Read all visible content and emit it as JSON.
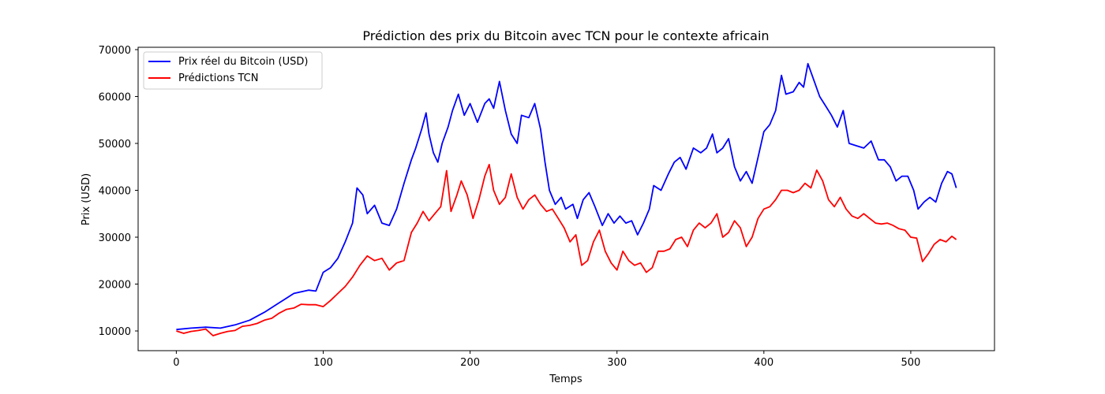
{
  "chart_data": {
    "type": "line",
    "title": "Prédiction des prix du Bitcoin avec TCN pour le contexte africain",
    "xlabel": "Temps",
    "ylabel": "Prix (USD)",
    "xlim": [
      -26,
      557
    ],
    "ylim": [
      5800,
      70500
    ],
    "xticks": [
      0,
      100,
      200,
      300,
      400,
      500
    ],
    "yticks": [
      10000,
      20000,
      30000,
      40000,
      50000,
      60000,
      70000
    ],
    "grid": false,
    "legend_position": "upper left",
    "series": [
      {
        "name": "Prix réel du Bitcoin (USD)",
        "color": "#0000ff",
        "points": [
          [
            0,
            10300
          ],
          [
            10,
            10600
          ],
          [
            20,
            10800
          ],
          [
            30,
            10600
          ],
          [
            40,
            11300
          ],
          [
            50,
            12300
          ],
          [
            60,
            14000
          ],
          [
            70,
            16000
          ],
          [
            80,
            18000
          ],
          [
            90,
            18700
          ],
          [
            95,
            18500
          ],
          [
            100,
            22500
          ],
          [
            105,
            23500
          ],
          [
            110,
            25500
          ],
          [
            115,
            29000
          ],
          [
            120,
            33000
          ],
          [
            123,
            40500
          ],
          [
            127,
            39000
          ],
          [
            130,
            35000
          ],
          [
            135,
            36800
          ],
          [
            140,
            33000
          ],
          [
            145,
            32500
          ],
          [
            150,
            36000
          ],
          [
            155,
            41500
          ],
          [
            160,
            46500
          ],
          [
            163,
            49000
          ],
          [
            167,
            53000
          ],
          [
            170,
            56500
          ],
          [
            172,
            52000
          ],
          [
            175,
            48000
          ],
          [
            178,
            46000
          ],
          [
            181,
            50000
          ],
          [
            185,
            53500
          ],
          [
            188,
            57000
          ],
          [
            192,
            60500
          ],
          [
            196,
            56000
          ],
          [
            200,
            58500
          ],
          [
            205,
            54500
          ],
          [
            210,
            58500
          ],
          [
            213,
            59500
          ],
          [
            216,
            57500
          ],
          [
            220,
            63200
          ],
          [
            224,
            57000
          ],
          [
            228,
            52000
          ],
          [
            232,
            50000
          ],
          [
            235,
            56000
          ],
          [
            240,
            55500
          ],
          [
            244,
            58500
          ],
          [
            248,
            53000
          ],
          [
            251,
            46000
          ],
          [
            254,
            40000
          ],
          [
            258,
            37000
          ],
          [
            262,
            38500
          ],
          [
            265,
            36000
          ],
          [
            270,
            37000
          ],
          [
            273,
            34000
          ],
          [
            277,
            38000
          ],
          [
            281,
            39500
          ],
          [
            285,
            36500
          ],
          [
            290,
            32500
          ],
          [
            294,
            35000
          ],
          [
            298,
            33000
          ],
          [
            302,
            34500
          ],
          [
            306,
            33000
          ],
          [
            310,
            33500
          ],
          [
            314,
            30500
          ],
          [
            318,
            33000
          ],
          [
            322,
            36000
          ],
          [
            325,
            41000
          ],
          [
            330,
            40000
          ],
          [
            335,
            43500
          ],
          [
            339,
            46000
          ],
          [
            343,
            47000
          ],
          [
            347,
            44500
          ],
          [
            352,
            49000
          ],
          [
            357,
            48000
          ],
          [
            361,
            49000
          ],
          [
            365,
            52000
          ],
          [
            368,
            48000
          ],
          [
            372,
            49000
          ],
          [
            376,
            51000
          ],
          [
            380,
            45000
          ],
          [
            384,
            42000
          ],
          [
            388,
            44000
          ],
          [
            392,
            41500
          ],
          [
            396,
            47000
          ],
          [
            400,
            52500
          ],
          [
            404,
            54000
          ],
          [
            408,
            57000
          ],
          [
            412,
            64500
          ],
          [
            415,
            60500
          ],
          [
            420,
            61000
          ],
          [
            424,
            63000
          ],
          [
            427,
            62000
          ],
          [
            430,
            67000
          ],
          [
            434,
            63500
          ],
          [
            438,
            60000
          ],
          [
            442,
            58000
          ],
          [
            446,
            56000
          ],
          [
            450,
            53500
          ],
          [
            454,
            57000
          ],
          [
            458,
            50000
          ],
          [
            463,
            49500
          ],
          [
            468,
            49000
          ],
          [
            473,
            50500
          ],
          [
            478,
            46500
          ],
          [
            482,
            46500
          ],
          [
            486,
            45000
          ],
          [
            490,
            42000
          ],
          [
            494,
            43000
          ],
          [
            498,
            43000
          ],
          [
            502,
            40000
          ],
          [
            505,
            36000
          ],
          [
            509,
            37500
          ],
          [
            513,
            38500
          ],
          [
            517,
            37500
          ],
          [
            521,
            41500
          ],
          [
            525,
            44000
          ],
          [
            528,
            43500
          ],
          [
            531,
            40500
          ]
        ]
      },
      {
        "name": "Prédictions TCN",
        "color": "#ff0000",
        "points": [
          [
            0,
            10000
          ],
          [
            5,
            9500
          ],
          [
            10,
            9900
          ],
          [
            15,
            10100
          ],
          [
            20,
            10400
          ],
          [
            25,
            9000
          ],
          [
            30,
            9500
          ],
          [
            35,
            9900
          ],
          [
            40,
            10100
          ],
          [
            45,
            11000
          ],
          [
            50,
            11200
          ],
          [
            55,
            11600
          ],
          [
            60,
            12300
          ],
          [
            65,
            12700
          ],
          [
            70,
            13800
          ],
          [
            75,
            14600
          ],
          [
            80,
            14900
          ],
          [
            85,
            15700
          ],
          [
            90,
            15600
          ],
          [
            95,
            15600
          ],
          [
            100,
            15200
          ],
          [
            105,
            16500
          ],
          [
            110,
            18000
          ],
          [
            115,
            19500
          ],
          [
            120,
            21500
          ],
          [
            125,
            24000
          ],
          [
            130,
            26000
          ],
          [
            135,
            25000
          ],
          [
            140,
            25500
          ],
          [
            145,
            23000
          ],
          [
            150,
            24500
          ],
          [
            155,
            25000
          ],
          [
            160,
            31000
          ],
          [
            164,
            33000
          ],
          [
            168,
            35500
          ],
          [
            172,
            33500
          ],
          [
            176,
            35000
          ],
          [
            180,
            36500
          ],
          [
            184,
            44200
          ],
          [
            187,
            35500
          ],
          [
            191,
            39000
          ],
          [
            194,
            42000
          ],
          [
            198,
            39000
          ],
          [
            202,
            34000
          ],
          [
            206,
            38000
          ],
          [
            210,
            43000
          ],
          [
            213,
            45500
          ],
          [
            216,
            40000
          ],
          [
            220,
            37000
          ],
          [
            224,
            38500
          ],
          [
            228,
            43500
          ],
          [
            232,
            38500
          ],
          [
            236,
            36000
          ],
          [
            240,
            38000
          ],
          [
            244,
            39000
          ],
          [
            248,
            37000
          ],
          [
            252,
            35500
          ],
          [
            256,
            36000
          ],
          [
            260,
            34000
          ],
          [
            264,
            32000
          ],
          [
            268,
            29000
          ],
          [
            272,
            30500
          ],
          [
            276,
            24000
          ],
          [
            280,
            25000
          ],
          [
            284,
            29000
          ],
          [
            288,
            31500
          ],
          [
            292,
            27000
          ],
          [
            296,
            24500
          ],
          [
            300,
            23000
          ],
          [
            304,
            27000
          ],
          [
            308,
            25000
          ],
          [
            312,
            24000
          ],
          [
            316,
            24500
          ],
          [
            320,
            22500
          ],
          [
            324,
            23500
          ],
          [
            328,
            27000
          ],
          [
            332,
            27000
          ],
          [
            336,
            27500
          ],
          [
            340,
            29500
          ],
          [
            344,
            30000
          ],
          [
            348,
            28000
          ],
          [
            352,
            31500
          ],
          [
            356,
            33000
          ],
          [
            360,
            32000
          ],
          [
            364,
            33000
          ],
          [
            368,
            35000
          ],
          [
            372,
            30000
          ],
          [
            376,
            31000
          ],
          [
            380,
            33500
          ],
          [
            384,
            32000
          ],
          [
            388,
            28000
          ],
          [
            392,
            30000
          ],
          [
            396,
            34000
          ],
          [
            400,
            36000
          ],
          [
            404,
            36500
          ],
          [
            408,
            38000
          ],
          [
            412,
            40000
          ],
          [
            416,
            40000
          ],
          [
            420,
            39500
          ],
          [
            424,
            40000
          ],
          [
            428,
            41500
          ],
          [
            432,
            40500
          ],
          [
            436,
            44300
          ],
          [
            440,
            42000
          ],
          [
            444,
            38000
          ],
          [
            448,
            36500
          ],
          [
            452,
            38500
          ],
          [
            456,
            36000
          ],
          [
            460,
            34500
          ],
          [
            464,
            34000
          ],
          [
            468,
            35000
          ],
          [
            472,
            34000
          ],
          [
            476,
            33000
          ],
          [
            480,
            32800
          ],
          [
            484,
            33000
          ],
          [
            488,
            32500
          ],
          [
            492,
            31800
          ],
          [
            496,
            31500
          ],
          [
            500,
            30000
          ],
          [
            504,
            29800
          ],
          [
            508,
            24800
          ],
          [
            512,
            26500
          ],
          [
            516,
            28500
          ],
          [
            520,
            29500
          ],
          [
            524,
            29000
          ],
          [
            528,
            30200
          ],
          [
            531,
            29500
          ]
        ]
      }
    ]
  }
}
